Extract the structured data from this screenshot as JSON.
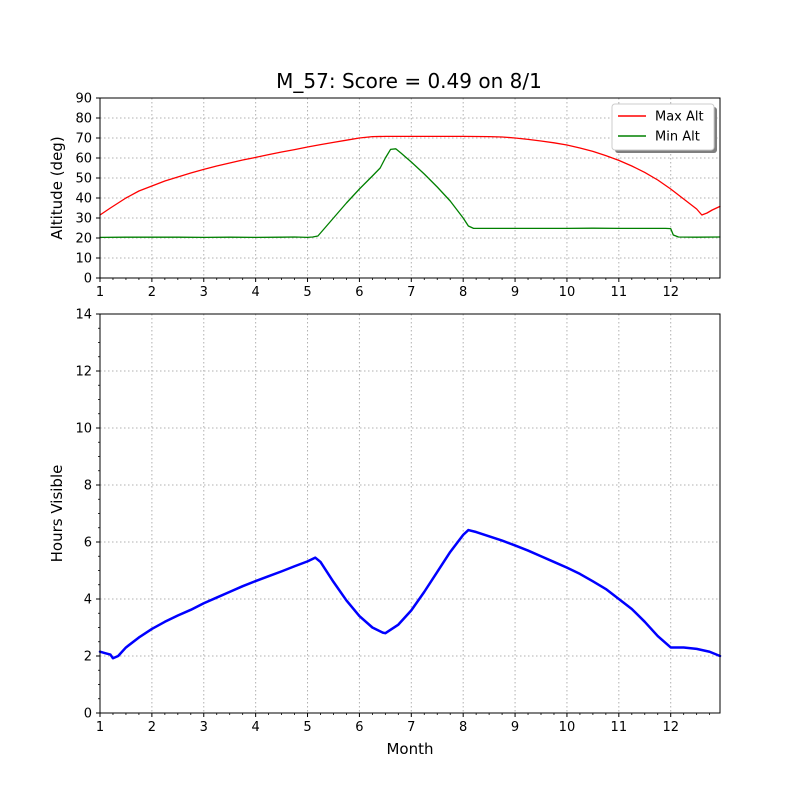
{
  "title": "M_57: Score = 0.49 on 8/1",
  "chart_data": [
    {
      "type": "line",
      "ylabel": "Altitude (deg)",
      "xlabel": "",
      "xlim": [
        1,
        12.95
      ],
      "ylim": [
        0,
        90
      ],
      "x_ticks": [
        1,
        2,
        3,
        4,
        5,
        6,
        7,
        8,
        9,
        10,
        11,
        12
      ],
      "y_ticks": [
        0,
        10,
        20,
        30,
        40,
        50,
        60,
        70,
        80,
        90
      ],
      "grid": true,
      "legend_position": "top-right",
      "series": [
        {
          "name": "Max Alt",
          "color": "#ff0000",
          "points": [
            [
              1.0,
              31.5
            ],
            [
              1.2,
              35
            ],
            [
              1.5,
              40
            ],
            [
              1.75,
              43.5
            ],
            [
              2.0,
              46
            ],
            [
              2.25,
              48.5
            ],
            [
              2.5,
              50.5
            ],
            [
              2.75,
              52.5
            ],
            [
              3.0,
              54.3
            ],
            [
              3.25,
              56
            ],
            [
              3.5,
              57.5
            ],
            [
              3.75,
              59
            ],
            [
              4.0,
              60.3
            ],
            [
              4.25,
              61.7
            ],
            [
              4.5,
              63
            ],
            [
              4.75,
              64.2
            ],
            [
              5.0,
              65.5
            ],
            [
              5.25,
              66.7
            ],
            [
              5.5,
              67.8
            ],
            [
              5.75,
              68.9
            ],
            [
              6.0,
              70
            ],
            [
              6.25,
              70.7
            ],
            [
              6.5,
              70.8
            ],
            [
              7.0,
              70.8
            ],
            [
              7.5,
              70.8
            ],
            [
              8.0,
              70.8
            ],
            [
              8.5,
              70.7
            ],
            [
              8.75,
              70.5
            ],
            [
              9.0,
              70
            ],
            [
              9.25,
              69.3
            ],
            [
              9.5,
              68.5
            ],
            [
              9.75,
              67.6
            ],
            [
              10.0,
              66.5
            ],
            [
              10.25,
              65
            ],
            [
              10.5,
              63.3
            ],
            [
              10.75,
              61.2
            ],
            [
              11.0,
              58.8
            ],
            [
              11.25,
              56
            ],
            [
              11.5,
              52.8
            ],
            [
              11.75,
              49
            ],
            [
              12.0,
              44.5
            ],
            [
              12.25,
              39.5
            ],
            [
              12.5,
              34.5
            ],
            [
              12.6,
              31.5
            ],
            [
              12.7,
              32.5
            ],
            [
              12.8,
              34
            ],
            [
              12.95,
              35.8
            ]
          ]
        },
        {
          "name": "Min Alt",
          "color": "#008000",
          "points": [
            [
              1.0,
              20.3
            ],
            [
              1.5,
              20.4
            ],
            [
              2.0,
              20.4
            ],
            [
              2.5,
              20.4
            ],
            [
              3.0,
              20.3
            ],
            [
              3.5,
              20.4
            ],
            [
              4.0,
              20.3
            ],
            [
              4.5,
              20.4
            ],
            [
              4.75,
              20.5
            ],
            [
              5.0,
              20.3
            ],
            [
              5.1,
              20.5
            ],
            [
              5.2,
              21
            ],
            [
              5.3,
              24
            ],
            [
              5.5,
              30
            ],
            [
              5.75,
              37.5
            ],
            [
              6.0,
              44.5
            ],
            [
              6.25,
              51
            ],
            [
              6.4,
              55
            ],
            [
              6.5,
              60
            ],
            [
              6.6,
              64.3
            ],
            [
              6.7,
              64.6
            ],
            [
              6.8,
              62.5
            ],
            [
              7.0,
              58
            ],
            [
              7.25,
              52
            ],
            [
              7.5,
              45.5
            ],
            [
              7.75,
              38.5
            ],
            [
              8.0,
              30
            ],
            [
              8.1,
              26
            ],
            [
              8.2,
              24.8
            ],
            [
              8.5,
              24.8
            ],
            [
              9.0,
              24.8
            ],
            [
              9.5,
              24.8
            ],
            [
              10.0,
              24.8
            ],
            [
              10.5,
              24.9
            ],
            [
              11.0,
              24.8
            ],
            [
              11.5,
              24.8
            ],
            [
              11.9,
              24.8
            ],
            [
              12.0,
              24.7
            ],
            [
              12.05,
              21.5
            ],
            [
              12.15,
              20.5
            ],
            [
              12.5,
              20.4
            ],
            [
              12.95,
              20.5
            ]
          ]
        }
      ]
    },
    {
      "type": "line",
      "ylabel": "Hours Visible",
      "xlabel": "Month",
      "xlim": [
        1,
        12.95
      ],
      "ylim": [
        0,
        14
      ],
      "x_ticks": [
        1,
        2,
        3,
        4,
        5,
        6,
        7,
        8,
        9,
        10,
        11,
        12
      ],
      "y_ticks": [
        0,
        2,
        4,
        6,
        8,
        10,
        12,
        14
      ],
      "grid": true,
      "series": [
        {
          "color": "#0000ff",
          "points": [
            [
              1.0,
              2.15
            ],
            [
              1.1,
              2.1
            ],
            [
              1.2,
              2.05
            ],
            [
              1.25,
              1.92
            ],
            [
              1.35,
              2.0
            ],
            [
              1.5,
              2.3
            ],
            [
              1.75,
              2.65
            ],
            [
              2.0,
              2.95
            ],
            [
              2.25,
              3.2
            ],
            [
              2.5,
              3.42
            ],
            [
              2.75,
              3.62
            ],
            [
              3.0,
              3.85
            ],
            [
              3.25,
              4.05
            ],
            [
              3.5,
              4.25
            ],
            [
              3.75,
              4.45
            ],
            [
              4.0,
              4.63
            ],
            [
              4.25,
              4.8
            ],
            [
              4.5,
              4.97
            ],
            [
              4.75,
              5.15
            ],
            [
              5.0,
              5.32
            ],
            [
              5.15,
              5.45
            ],
            [
              5.25,
              5.3
            ],
            [
              5.5,
              4.6
            ],
            [
              5.75,
              3.95
            ],
            [
              6.0,
              3.4
            ],
            [
              6.25,
              3.0
            ],
            [
              6.45,
              2.82
            ],
            [
              6.5,
              2.8
            ],
            [
              6.75,
              3.1
            ],
            [
              7.0,
              3.6
            ],
            [
              7.25,
              4.25
            ],
            [
              7.5,
              4.95
            ],
            [
              7.75,
              5.65
            ],
            [
              8.0,
              6.25
            ],
            [
              8.1,
              6.42
            ],
            [
              8.25,
              6.35
            ],
            [
              8.5,
              6.2
            ],
            [
              8.75,
              6.05
            ],
            [
              9.0,
              5.88
            ],
            [
              9.25,
              5.7
            ],
            [
              9.5,
              5.5
            ],
            [
              9.75,
              5.3
            ],
            [
              10.0,
              5.1
            ],
            [
              10.25,
              4.88
            ],
            [
              10.5,
              4.62
            ],
            [
              10.75,
              4.35
            ],
            [
              11.0,
              4.0
            ],
            [
              11.25,
              3.65
            ],
            [
              11.5,
              3.2
            ],
            [
              11.75,
              2.7
            ],
            [
              12.0,
              2.3
            ],
            [
              12.25,
              2.3
            ],
            [
              12.5,
              2.25
            ],
            [
              12.75,
              2.15
            ],
            [
              12.95,
              2.0
            ]
          ]
        }
      ]
    }
  ]
}
